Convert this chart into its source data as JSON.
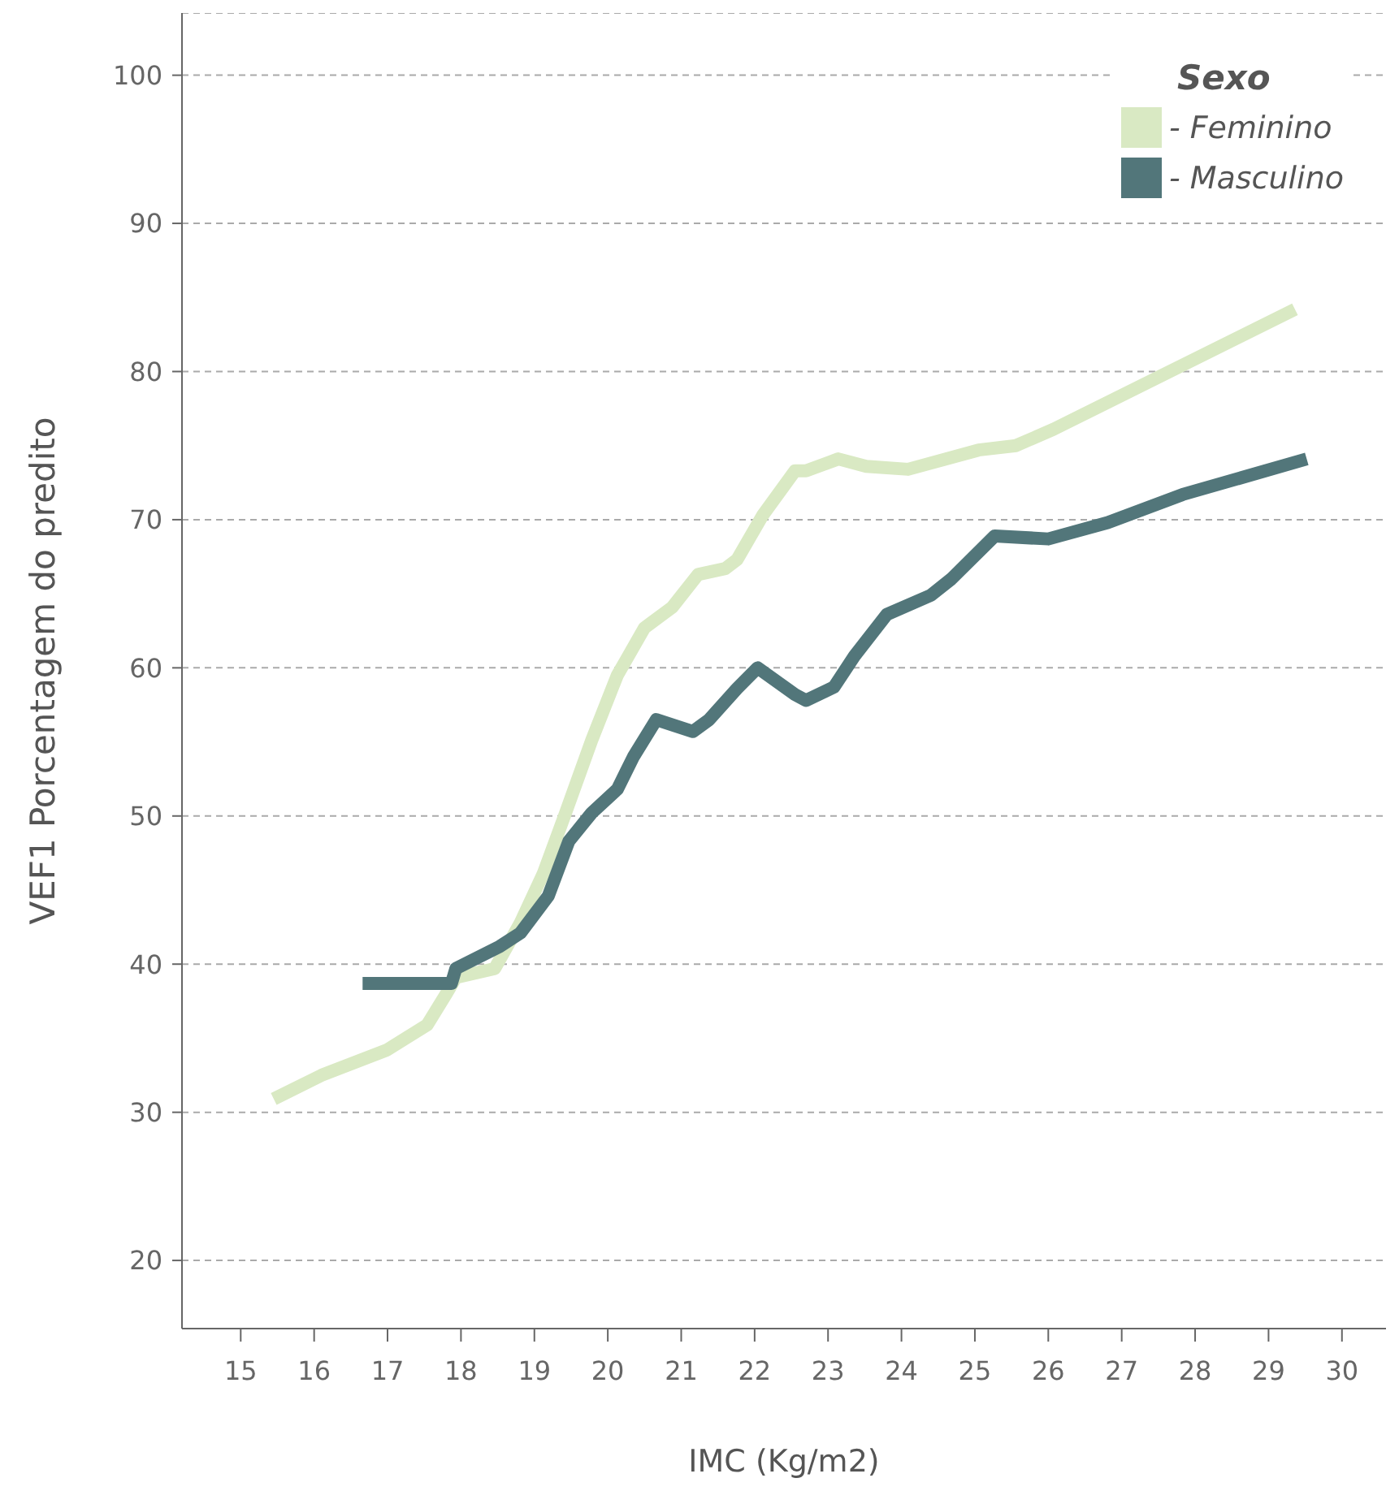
{
  "chart_data": {
    "type": "line",
    "xlabel": "IMC (Kg/m2)",
    "ylabel": "VEF1 Porcentagem do predito",
    "legend_title": "Sexo",
    "legend": "top right",
    "grid": "y",
    "line_style": "solid",
    "marker": "none",
    "xlim": [
      14.2,
      30.6
    ],
    "xticks": [
      15,
      16,
      17,
      18,
      19,
      20,
      21,
      22,
      23,
      24,
      25,
      26,
      27,
      28,
      29,
      30
    ],
    "ylim": [
      15.4,
      104.2
    ],
    "yticks": [
      20,
      30,
      40,
      50,
      60,
      70,
      80,
      90,
      100
    ],
    "series": [
      {
        "name": "- Feminino",
        "color": "#d9e9c3",
        "x": [
          15.45,
          16.1,
          16.99,
          17.54,
          17.8,
          17.93,
          18.46,
          18.81,
          19.12,
          19.41,
          19.78,
          20.13,
          20.5,
          20.88,
          21.23,
          21.6,
          21.76,
          22.11,
          22.55,
          22.7,
          23.14,
          23.52,
          24.09,
          25.05,
          25.56,
          26.07,
          29.36
        ],
        "values": [
          30.9,
          32.5,
          34.2,
          35.9,
          38.0,
          39.1,
          39.7,
          42.8,
          46.1,
          50.0,
          55.1,
          59.5,
          62.7,
          64.1,
          66.3,
          66.7,
          67.3,
          70.3,
          73.3,
          73.3,
          74.1,
          73.6,
          73.4,
          74.7,
          75.0,
          76.1,
          84.2
        ]
      },
      {
        "name": "- Masculino",
        "color": "#52767a",
        "x": [
          16.66,
          17.87,
          17.93,
          18.53,
          18.81,
          19.19,
          19.47,
          19.78,
          20.13,
          20.35,
          20.66,
          21.16,
          21.38,
          21.76,
          22.04,
          22.55,
          22.7,
          23.08,
          23.36,
          23.8,
          24.4,
          24.68,
          25.27,
          26.0,
          26.81,
          27.83,
          29.52
        ],
        "values": [
          38.7,
          38.7,
          39.7,
          41.2,
          42.1,
          44.6,
          48.3,
          50.2,
          51.8,
          54.0,
          56.5,
          55.7,
          56.5,
          58.6,
          60.0,
          58.2,
          57.8,
          58.7,
          60.8,
          63.6,
          64.9,
          66.0,
          68.9,
          68.7,
          69.8,
          71.7,
          74.1
        ]
      }
    ]
  }
}
